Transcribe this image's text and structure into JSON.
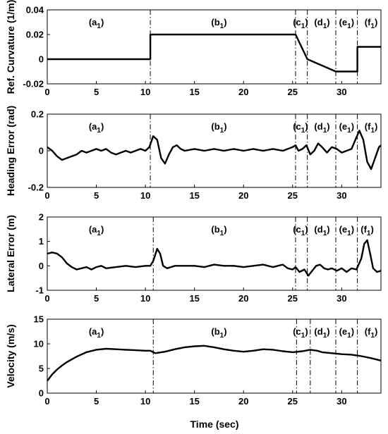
{
  "chart_data": [
    {
      "type": "line",
      "ylabel": "Ref. Curvature (1/m)",
      "xlabel": "",
      "xlim": [
        0,
        34
      ],
      "ylim": [
        -0.02,
        0.04
      ],
      "xticks": [
        "0",
        "5",
        "10",
        "15",
        "20",
        "25",
        "30"
      ],
      "yticks": [
        "-0.02",
        "0",
        "0.02",
        "0.04"
      ],
      "vlines": [
        10.5,
        25.3,
        26.5,
        29.4,
        31.6
      ],
      "segments": [
        {
          "letter": "a",
          "sub": "1",
          "x": 5.0
        },
        {
          "letter": "b",
          "sub": "1",
          "x": 17.5
        },
        {
          "letter": "c",
          "sub": "1",
          "x": 25.8
        },
        {
          "letter": "d",
          "sub": "1",
          "x": 28.0
        },
        {
          "letter": "e",
          "sub": "1",
          "x": 30.5
        },
        {
          "letter": "f",
          "sub": "1",
          "x": 33.0
        }
      ],
      "series": [
        {
          "x": [
            0,
            10.5,
            10.5,
            25.3,
            26.5,
            29.4,
            31.6,
            31.6,
            34
          ],
          "y": [
            0,
            0,
            0.02,
            0.02,
            0.0,
            -0.01,
            -0.01,
            0.01,
            0.01
          ]
        }
      ]
    },
    {
      "type": "line",
      "ylabel": "Heading Error (rad)",
      "xlabel": "",
      "xlim": [
        0,
        34
      ],
      "ylim": [
        -0.2,
        0.2
      ],
      "xticks": [
        "0",
        "5",
        "10",
        "15",
        "20",
        "25",
        "30"
      ],
      "yticks": [
        "-0.2",
        "0",
        "0.2"
      ],
      "vlines": [
        10.5,
        25.3,
        26.5,
        29.4,
        31.6
      ],
      "segments": [
        {
          "letter": "a",
          "sub": "1",
          "x": 5.0
        },
        {
          "letter": "b",
          "sub": "1",
          "x": 17.5
        },
        {
          "letter": "c",
          "sub": "1",
          "x": 25.8
        },
        {
          "letter": "d",
          "sub": "1",
          "x": 28.0
        },
        {
          "letter": "e",
          "sub": "1",
          "x": 30.5
        },
        {
          "letter": "f",
          "sub": "1",
          "x": 33.0
        }
      ],
      "series": [
        {
          "x": [
            0,
            0.5,
            1,
            1.5,
            2,
            2.5,
            3,
            3.5,
            4,
            4.5,
            5,
            5.5,
            6,
            6.5,
            7,
            7.5,
            8,
            8.5,
            9,
            9.5,
            10,
            10.4,
            10.8,
            11.2,
            11.6,
            12,
            12.4,
            12.8,
            13.2,
            13.6,
            14,
            15,
            16,
            17,
            18,
            19,
            20,
            21,
            22,
            23,
            24,
            24.5,
            25,
            25.3,
            25.6,
            26,
            26.4,
            26.8,
            27.2,
            27.6,
            28,
            28.5,
            29,
            29.5,
            30,
            30.5,
            31,
            31.4,
            31.8,
            32.2,
            32.6,
            33,
            33.4,
            33.8,
            34
          ],
          "y": [
            0.02,
            0.0,
            -0.03,
            -0.05,
            -0.04,
            -0.03,
            -0.02,
            0.0,
            -0.01,
            0.0,
            0.01,
            0.0,
            0.01,
            -0.01,
            -0.02,
            -0.01,
            0.0,
            -0.01,
            0.0,
            0.01,
            0.0,
            0.02,
            0.08,
            0.06,
            -0.04,
            -0.07,
            -0.02,
            0.02,
            0.03,
            0.01,
            0.0,
            0.01,
            0.0,
            0.01,
            0.0,
            0.01,
            0.0,
            0.01,
            0.0,
            0.01,
            0.0,
            0.01,
            0.02,
            0.03,
            0.0,
            0.01,
            0.03,
            -0.02,
            0.0,
            0.04,
            0.02,
            -0.01,
            0.02,
            0.01,
            -0.01,
            0.0,
            0.01,
            0.06,
            0.11,
            0.06,
            -0.06,
            -0.1,
            -0.04,
            0.02,
            0.03
          ]
        }
      ]
    },
    {
      "type": "line",
      "ylabel": "Lateral Error (m)",
      "xlabel": "",
      "xlim": [
        0,
        34
      ],
      "ylim": [
        -1,
        2
      ],
      "xticks": [
        "0",
        "5",
        "10",
        "15",
        "20",
        "25",
        "30"
      ],
      "yticks": [
        "-1",
        "0",
        "1",
        "2"
      ],
      "vlines": [
        10.8,
        25.3,
        26.5,
        29.4,
        31.6
      ],
      "segments": [
        {
          "letter": "a",
          "sub": "1",
          "x": 5.0
        },
        {
          "letter": "b",
          "sub": "1",
          "x": 17.5
        },
        {
          "letter": "c",
          "sub": "1",
          "x": 25.8
        },
        {
          "letter": "d",
          "sub": "1",
          "x": 28.0
        },
        {
          "letter": "e",
          "sub": "1",
          "x": 30.5
        },
        {
          "letter": "f",
          "sub": "1",
          "x": 32.6
        }
      ],
      "series": [
        {
          "x": [
            0,
            0.5,
            1,
            1.5,
            2,
            2.5,
            3,
            3.5,
            4,
            4.5,
            5,
            5.5,
            6,
            7,
            8,
            9,
            10,
            10.5,
            10.8,
            11.2,
            11.5,
            11.8,
            12.2,
            12.6,
            13,
            14,
            15,
            16,
            17,
            18,
            19,
            20,
            21,
            22,
            23,
            24,
            24.5,
            25,
            25.3,
            25.7,
            26.2,
            26.6,
            27,
            27.4,
            27.8,
            28.2,
            28.6,
            29,
            29.5,
            30,
            30.5,
            31,
            31.5,
            32,
            32.3,
            32.6,
            32.9,
            33.2,
            33.6,
            34
          ],
          "y": [
            0.5,
            0.55,
            0.5,
            0.35,
            0.1,
            -0.05,
            -0.15,
            -0.1,
            -0.05,
            -0.15,
            -0.05,
            0.0,
            -0.1,
            -0.05,
            0.0,
            -0.05,
            0.0,
            0.0,
            0.2,
            0.7,
            0.5,
            0.0,
            -0.1,
            -0.05,
            0.0,
            0.0,
            0.0,
            -0.05,
            0.05,
            0.0,
            0.0,
            -0.05,
            0.0,
            0.05,
            -0.05,
            0.05,
            -0.1,
            -0.15,
            -0.05,
            -0.25,
            -0.15,
            -0.4,
            -0.2,
            0.0,
            0.05,
            -0.1,
            -0.15,
            -0.1,
            -0.2,
            -0.1,
            -0.25,
            -0.1,
            -0.15,
            0.3,
            0.9,
            1.05,
            0.5,
            -0.1,
            -0.25,
            -0.2
          ]
        }
      ]
    },
    {
      "type": "line",
      "ylabel": "Velocity (m/s)",
      "xlabel": "Time (sec)",
      "xlim": [
        0,
        34
      ],
      "ylim": [
        0,
        15
      ],
      "xticks": [
        "0",
        "5",
        "10",
        "15",
        "20",
        "25",
        "30"
      ],
      "yticks": [
        "0",
        "5",
        "10",
        "15"
      ],
      "vlines": [
        10.8,
        25.4,
        26.8,
        29.4,
        31.6
      ],
      "segments": [
        {
          "letter": "a",
          "sub": "1",
          "x": 5.0
        },
        {
          "letter": "b",
          "sub": "1",
          "x": 17.5
        },
        {
          "letter": "c",
          "sub": "1",
          "x": 25.8
        },
        {
          "letter": "d",
          "sub": "1",
          "x": 28.0
        },
        {
          "letter": "e",
          "sub": "1",
          "x": 30.5
        },
        {
          "letter": "f",
          "sub": "1",
          "x": 33.0
        }
      ],
      "series": [
        {
          "x": [
            0,
            0.5,
            1,
            1.5,
            2,
            3,
            4,
            5,
            6,
            7,
            8,
            9,
            10,
            10.5,
            11,
            12,
            13,
            14,
            15,
            16,
            17,
            18,
            19,
            20,
            21,
            22,
            23,
            24,
            25,
            26,
            26.8,
            27.5,
            28,
            29,
            30,
            31,
            32,
            33,
            34
          ],
          "y": [
            2.5,
            3.8,
            4.8,
            5.6,
            6.3,
            7.4,
            8.3,
            8.8,
            9.0,
            8.9,
            8.8,
            8.7,
            8.6,
            8.6,
            8.1,
            8.4,
            8.9,
            9.3,
            9.5,
            9.6,
            9.3,
            8.9,
            8.6,
            8.4,
            8.6,
            8.9,
            8.8,
            8.5,
            8.3,
            8.5,
            8.8,
            8.6,
            8.3,
            8.1,
            7.9,
            7.8,
            7.5,
            7.1,
            6.6
          ]
        }
      ]
    }
  ]
}
